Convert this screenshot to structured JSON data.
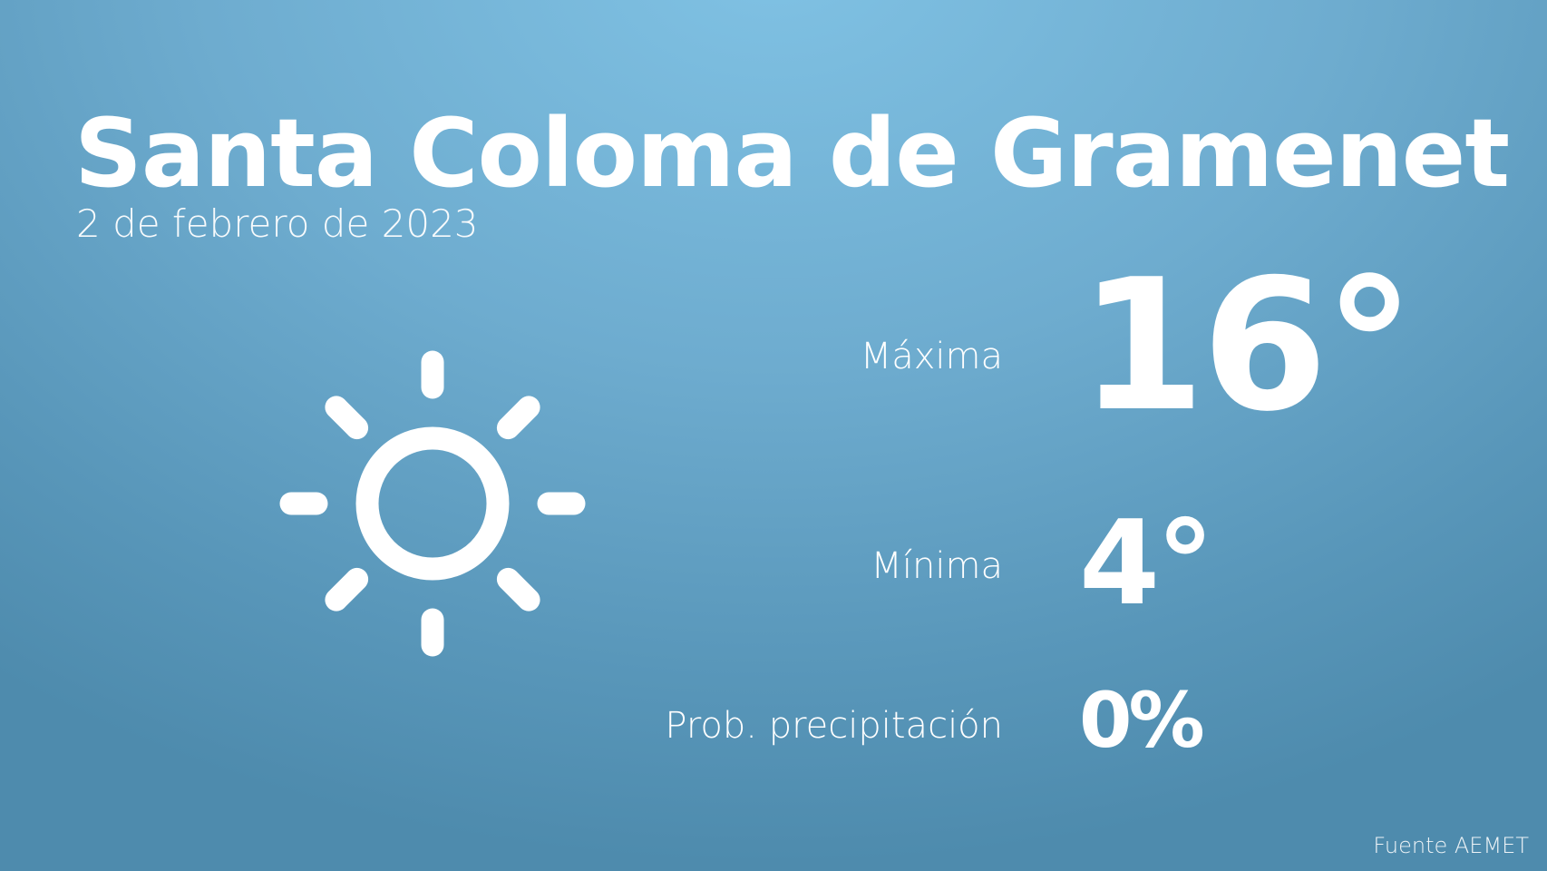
{
  "location": "Santa Coloma de Gramenet",
  "date": "2 de febrero de 2023",
  "weather_icon": "sun-icon",
  "forecast": {
    "max_label": "Máxima",
    "max_value": "16°",
    "min_label": "Mínima",
    "min_value": "4°",
    "precip_label": "Prob. precipitación",
    "precip_value": "0%"
  },
  "source": "Fuente AEMET",
  "colors": {
    "background_top": "#80c2e4",
    "background_bottom": "#4e8bad",
    "text": "#ffffff"
  }
}
